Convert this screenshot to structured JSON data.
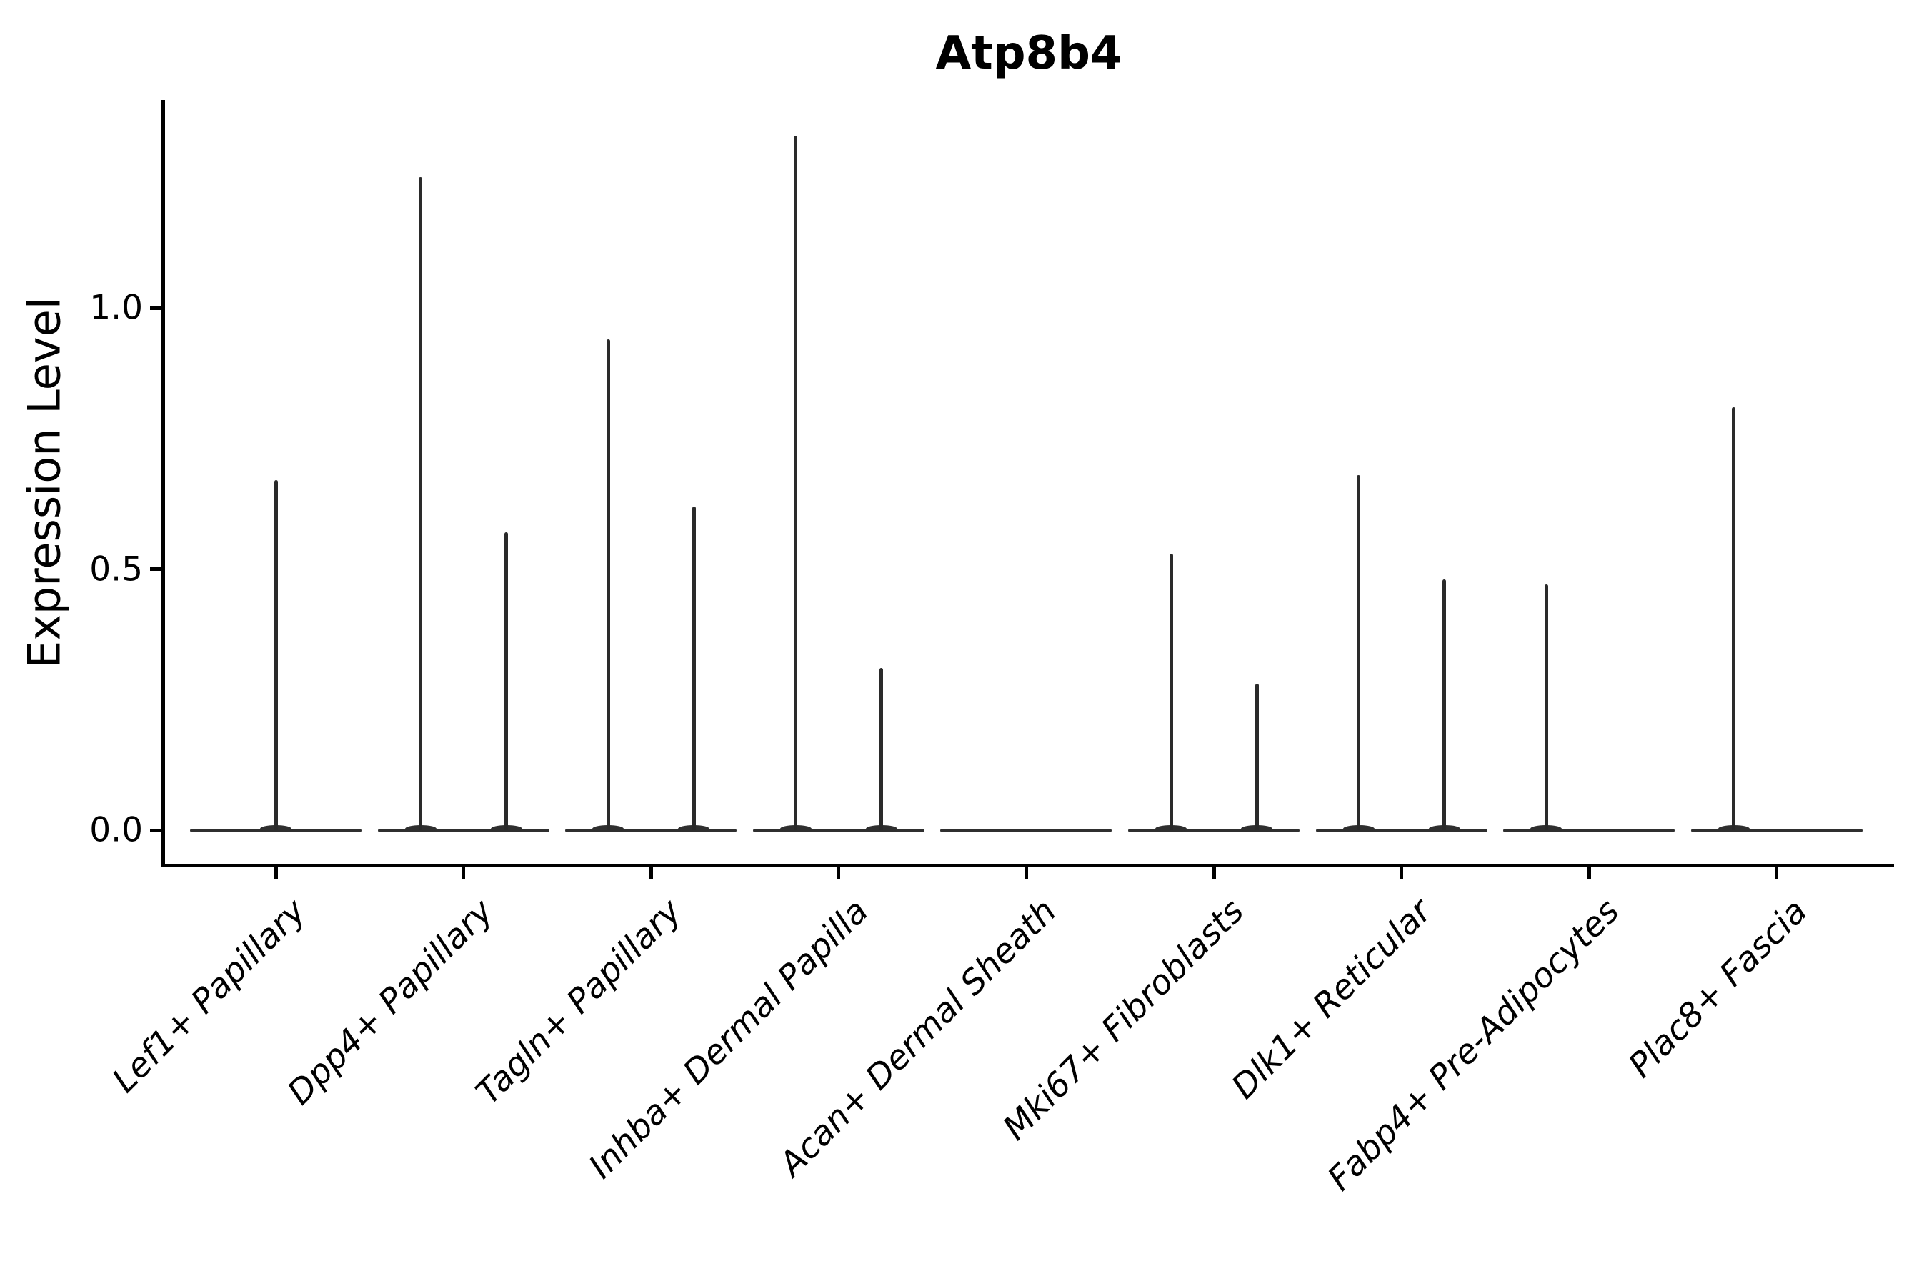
{
  "title": "Atp8b4",
  "ylabel": "Expression Level",
  "chart_data": {
    "type": "violin",
    "title": "Atp8b4",
    "xlabel": "",
    "ylabel": "Expression Level",
    "ylim": [
      -0.07,
      1.4
    ],
    "grid": false,
    "legend": "none",
    "yticks": [
      {
        "value": 0.0,
        "label": "0.0"
      },
      {
        "value": 0.5,
        "label": "0.5"
      },
      {
        "value": 1.0,
        "label": "1.0"
      }
    ],
    "categories": [
      {
        "label": "Lef1+ Papillary",
        "violins": [
          {
            "pos": "center",
            "max": 0.67
          }
        ]
      },
      {
        "label": "Dpp4+ Papillary",
        "violins": [
          {
            "pos": "left",
            "max": 1.25
          },
          {
            "pos": "right",
            "max": 0.57
          }
        ]
      },
      {
        "label": "Tagln+ Papillary",
        "violins": [
          {
            "pos": "left",
            "max": 0.94
          },
          {
            "pos": "right",
            "max": 0.62
          }
        ]
      },
      {
        "label": "Inhba+ Dermal Papilla",
        "violins": [
          {
            "pos": "left",
            "max": 1.33
          },
          {
            "pos": "right",
            "max": 0.31
          }
        ]
      },
      {
        "label": "Acan+ Dermal Sheath",
        "violins": []
      },
      {
        "label": "Mki67+ Fibroblasts",
        "violins": [
          {
            "pos": "left",
            "max": 0.53
          },
          {
            "pos": "right",
            "max": 0.28
          }
        ]
      },
      {
        "label": "Dlk1+ Reticular",
        "violins": [
          {
            "pos": "left",
            "max": 0.68
          },
          {
            "pos": "right",
            "max": 0.48
          }
        ]
      },
      {
        "label": "Fabp4+ Pre-Adipocytes",
        "violins": [
          {
            "pos": "left",
            "max": 0.47
          }
        ]
      },
      {
        "label": "Plac8+ Fascia",
        "violins": [
          {
            "pos": "left",
            "max": 0.81
          }
        ]
      }
    ],
    "baseline_value": 0.0,
    "colors": {
      "violin_line": "#2a2a2a",
      "spine": "#000000",
      "text": "#000000",
      "background": "#ffffff"
    }
  }
}
